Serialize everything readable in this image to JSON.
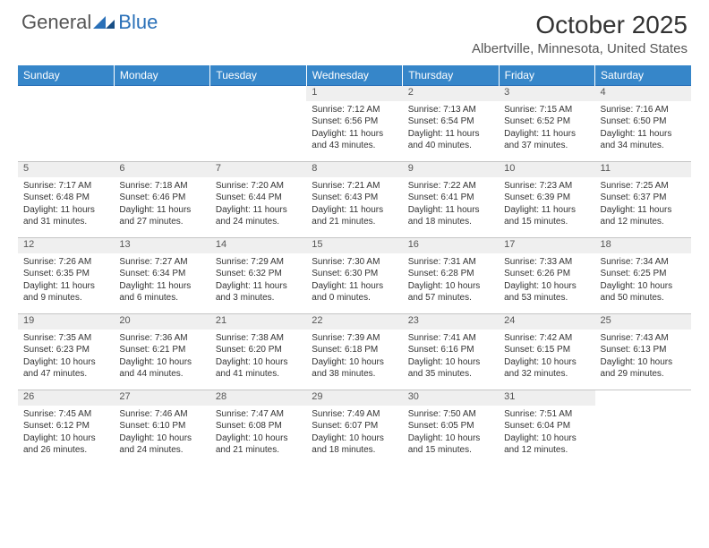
{
  "brand": {
    "text1": "General",
    "text2": "Blue"
  },
  "title": "October 2025",
  "location": "Albertville, Minnesota, United States",
  "colors": {
    "header_bg": "#3686c9",
    "header_text": "#ffffff",
    "daynum_bg": "#efefef",
    "border_top": "#2a70b8",
    "cell_border": "#c5c5c5",
    "body_text": "#333333",
    "brand_gray": "#555555",
    "brand_blue": "#2a70b8"
  },
  "weekdays": [
    "Sunday",
    "Monday",
    "Tuesday",
    "Wednesday",
    "Thursday",
    "Friday",
    "Saturday"
  ],
  "weeks": [
    [
      null,
      null,
      null,
      {
        "n": "1",
        "sr": "7:12 AM",
        "ss": "6:56 PM",
        "dl": "11 hours and 43 minutes."
      },
      {
        "n": "2",
        "sr": "7:13 AM",
        "ss": "6:54 PM",
        "dl": "11 hours and 40 minutes."
      },
      {
        "n": "3",
        "sr": "7:15 AM",
        "ss": "6:52 PM",
        "dl": "11 hours and 37 minutes."
      },
      {
        "n": "4",
        "sr": "7:16 AM",
        "ss": "6:50 PM",
        "dl": "11 hours and 34 minutes."
      }
    ],
    [
      {
        "n": "5",
        "sr": "7:17 AM",
        "ss": "6:48 PM",
        "dl": "11 hours and 31 minutes."
      },
      {
        "n": "6",
        "sr": "7:18 AM",
        "ss": "6:46 PM",
        "dl": "11 hours and 27 minutes."
      },
      {
        "n": "7",
        "sr": "7:20 AM",
        "ss": "6:44 PM",
        "dl": "11 hours and 24 minutes."
      },
      {
        "n": "8",
        "sr": "7:21 AM",
        "ss": "6:43 PM",
        "dl": "11 hours and 21 minutes."
      },
      {
        "n": "9",
        "sr": "7:22 AM",
        "ss": "6:41 PM",
        "dl": "11 hours and 18 minutes."
      },
      {
        "n": "10",
        "sr": "7:23 AM",
        "ss": "6:39 PM",
        "dl": "11 hours and 15 minutes."
      },
      {
        "n": "11",
        "sr": "7:25 AM",
        "ss": "6:37 PM",
        "dl": "11 hours and 12 minutes."
      }
    ],
    [
      {
        "n": "12",
        "sr": "7:26 AM",
        "ss": "6:35 PM",
        "dl": "11 hours and 9 minutes."
      },
      {
        "n": "13",
        "sr": "7:27 AM",
        "ss": "6:34 PM",
        "dl": "11 hours and 6 minutes."
      },
      {
        "n": "14",
        "sr": "7:29 AM",
        "ss": "6:32 PM",
        "dl": "11 hours and 3 minutes."
      },
      {
        "n": "15",
        "sr": "7:30 AM",
        "ss": "6:30 PM",
        "dl": "11 hours and 0 minutes."
      },
      {
        "n": "16",
        "sr": "7:31 AM",
        "ss": "6:28 PM",
        "dl": "10 hours and 57 minutes."
      },
      {
        "n": "17",
        "sr": "7:33 AM",
        "ss": "6:26 PM",
        "dl": "10 hours and 53 minutes."
      },
      {
        "n": "18",
        "sr": "7:34 AM",
        "ss": "6:25 PM",
        "dl": "10 hours and 50 minutes."
      }
    ],
    [
      {
        "n": "19",
        "sr": "7:35 AM",
        "ss": "6:23 PM",
        "dl": "10 hours and 47 minutes."
      },
      {
        "n": "20",
        "sr": "7:36 AM",
        "ss": "6:21 PM",
        "dl": "10 hours and 44 minutes."
      },
      {
        "n": "21",
        "sr": "7:38 AM",
        "ss": "6:20 PM",
        "dl": "10 hours and 41 minutes."
      },
      {
        "n": "22",
        "sr": "7:39 AM",
        "ss": "6:18 PM",
        "dl": "10 hours and 38 minutes."
      },
      {
        "n": "23",
        "sr": "7:41 AM",
        "ss": "6:16 PM",
        "dl": "10 hours and 35 minutes."
      },
      {
        "n": "24",
        "sr": "7:42 AM",
        "ss": "6:15 PM",
        "dl": "10 hours and 32 minutes."
      },
      {
        "n": "25",
        "sr": "7:43 AM",
        "ss": "6:13 PM",
        "dl": "10 hours and 29 minutes."
      }
    ],
    [
      {
        "n": "26",
        "sr": "7:45 AM",
        "ss": "6:12 PM",
        "dl": "10 hours and 26 minutes."
      },
      {
        "n": "27",
        "sr": "7:46 AM",
        "ss": "6:10 PM",
        "dl": "10 hours and 24 minutes."
      },
      {
        "n": "28",
        "sr": "7:47 AM",
        "ss": "6:08 PM",
        "dl": "10 hours and 21 minutes."
      },
      {
        "n": "29",
        "sr": "7:49 AM",
        "ss": "6:07 PM",
        "dl": "10 hours and 18 minutes."
      },
      {
        "n": "30",
        "sr": "7:50 AM",
        "ss": "6:05 PM",
        "dl": "10 hours and 15 minutes."
      },
      {
        "n": "31",
        "sr": "7:51 AM",
        "ss": "6:04 PM",
        "dl": "10 hours and 12 minutes."
      },
      null
    ]
  ],
  "labels": {
    "sunrise": "Sunrise:",
    "sunset": "Sunset:",
    "daylight": "Daylight:"
  }
}
